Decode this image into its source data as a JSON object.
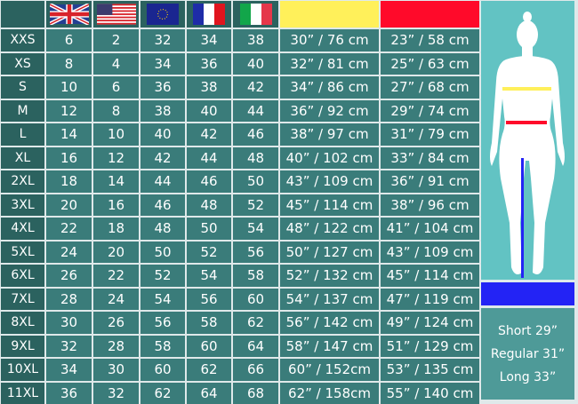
{
  "header": {
    "flags": [
      "uk-flag-icon",
      "us-flag-icon",
      "eu-flag-icon",
      "fr-flag-icon",
      "it-flag-icon"
    ],
    "chest_color": "#fff05a",
    "waist_color": "#ff0a2a",
    "inseam_color": "#2323f5"
  },
  "rows": [
    [
      "XXS",
      "6",
      "2",
      "32",
      "34",
      "38",
      "30” / 76 cm",
      "23” / 58 cm"
    ],
    [
      "XS",
      "8",
      "4",
      "34",
      "36",
      "40",
      "32” / 81 cm",
      "25” / 63 cm"
    ],
    [
      "S",
      "10",
      "6",
      "36",
      "38",
      "42",
      "34” / 86 cm",
      "27” / 68 cm"
    ],
    [
      "M",
      "12",
      "8",
      "38",
      "40",
      "44",
      "36” / 92 cm",
      "29” / 74 cm"
    ],
    [
      "L",
      "14",
      "10",
      "40",
      "42",
      "46",
      "38” / 97 cm",
      "31” / 79 cm"
    ],
    [
      "XL",
      "16",
      "12",
      "42",
      "44",
      "48",
      "40” / 102 cm",
      "33” / 84 cm"
    ],
    [
      "2XL",
      "18",
      "14",
      "44",
      "46",
      "50",
      "43” / 109 cm",
      "36” / 91 cm"
    ],
    [
      "3XL",
      "20",
      "16",
      "46",
      "48",
      "52",
      "45” / 114 cm",
      "38” / 96 cm"
    ],
    [
      "4XL",
      "22",
      "18",
      "48",
      "50",
      "54",
      "48” / 122 cm",
      "41” / 104 cm"
    ],
    [
      "5XL",
      "24",
      "20",
      "50",
      "52",
      "56",
      "50” / 127 cm",
      "43” / 109 cm"
    ],
    [
      "6XL",
      "26",
      "22",
      "52",
      "54",
      "58",
      "52” / 132 cm",
      "45” / 114 cm"
    ],
    [
      "7XL",
      "28",
      "24",
      "54",
      "56",
      "60",
      "54” / 137 cm",
      "47” / 119 cm"
    ],
    [
      "8XL",
      "30",
      "26",
      "56",
      "58",
      "62",
      "56” / 142 cm",
      "49” / 124 cm"
    ],
    [
      "9XL",
      "32",
      "28",
      "58",
      "60",
      "64",
      "58” / 147 cm",
      "51” / 129 cm"
    ],
    [
      "10XL",
      "34",
      "30",
      "60",
      "62",
      "66",
      "60” / 152cm",
      "53” / 135 cm"
    ],
    [
      "11XL",
      "36",
      "32",
      "62",
      "64",
      "68",
      "62” / 158cm",
      "55” / 140 cm"
    ]
  ],
  "lengths": [
    "Short 29”",
    "Regular 31”",
    "Long 33”"
  ]
}
